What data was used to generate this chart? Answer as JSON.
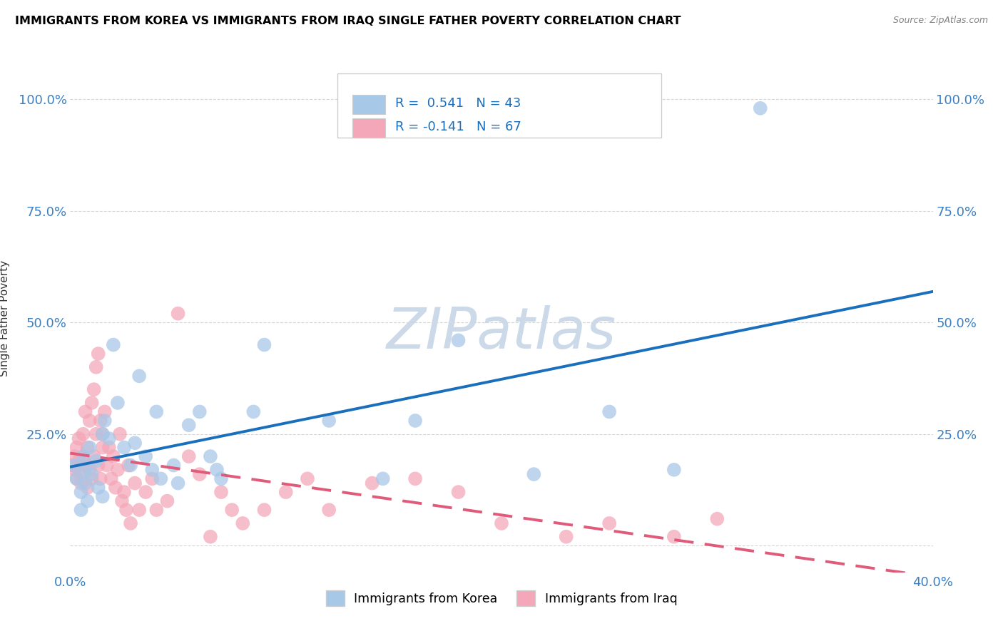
{
  "title": "IMMIGRANTS FROM KOREA VS IMMIGRANTS FROM IRAQ SINGLE FATHER POVERTY CORRELATION CHART",
  "source": "Source: ZipAtlas.com",
  "ylabel": "Single Father Poverty",
  "ytick_labels": [
    "",
    "25.0%",
    "50.0%",
    "75.0%",
    "100.0%"
  ],
  "ytick_values": [
    0.0,
    0.25,
    0.5,
    0.75,
    1.0
  ],
  "xtick_labels": [
    "0.0%",
    "",
    "",
    "",
    "40.0%"
  ],
  "xtick_values": [
    0.0,
    0.1,
    0.2,
    0.3,
    0.4
  ],
  "xlim": [
    0.0,
    0.4
  ],
  "ylim": [
    -0.06,
    1.08
  ],
  "korea_color": "#a8c8e8",
  "iraq_color": "#f4a7b9",
  "korea_line_color": "#1a6fbd",
  "iraq_line_color": "#e05a7a",
  "korea_R": "0.541",
  "korea_N": "43",
  "iraq_R": "-0.141",
  "iraq_N": "67",
  "watermark": "ZIPatlas",
  "watermark_color": "#ccd9e8",
  "background_color": "#ffffff",
  "grid_color": "#cccccc",
  "axis_label_color": "#3a7fc1",
  "legend_text_color": "#1a6fbd",
  "korea_x": [
    0.002,
    0.003,
    0.005,
    0.005,
    0.006,
    0.007,
    0.007,
    0.008,
    0.009,
    0.01,
    0.012,
    0.013,
    0.015,
    0.015,
    0.016,
    0.018,
    0.02,
    0.022,
    0.025,
    0.028,
    0.03,
    0.032,
    0.035,
    0.038,
    0.04,
    0.042,
    0.048,
    0.05,
    0.055,
    0.06,
    0.065,
    0.068,
    0.07,
    0.085,
    0.09,
    0.12,
    0.145,
    0.16,
    0.18,
    0.215,
    0.25,
    0.28,
    0.32
  ],
  "korea_y": [
    0.18,
    0.15,
    0.12,
    0.08,
    0.2,
    0.17,
    0.14,
    0.1,
    0.22,
    0.16,
    0.19,
    0.13,
    0.25,
    0.11,
    0.28,
    0.24,
    0.45,
    0.32,
    0.22,
    0.18,
    0.23,
    0.38,
    0.2,
    0.17,
    0.3,
    0.15,
    0.18,
    0.14,
    0.27,
    0.3,
    0.2,
    0.17,
    0.15,
    0.3,
    0.45,
    0.28,
    0.15,
    0.28,
    0.46,
    0.16,
    0.3,
    0.17,
    0.98
  ],
  "iraq_x": [
    0.001,
    0.002,
    0.002,
    0.003,
    0.003,
    0.004,
    0.004,
    0.005,
    0.005,
    0.006,
    0.006,
    0.007,
    0.007,
    0.008,
    0.008,
    0.009,
    0.009,
    0.01,
    0.01,
    0.011,
    0.011,
    0.012,
    0.012,
    0.013,
    0.013,
    0.014,
    0.014,
    0.015,
    0.015,
    0.016,
    0.017,
    0.018,
    0.019,
    0.02,
    0.021,
    0.022,
    0.023,
    0.024,
    0.025,
    0.026,
    0.027,
    0.028,
    0.03,
    0.032,
    0.035,
    0.038,
    0.04,
    0.045,
    0.05,
    0.055,
    0.06,
    0.065,
    0.07,
    0.075,
    0.08,
    0.09,
    0.1,
    0.11,
    0.12,
    0.14,
    0.16,
    0.18,
    0.2,
    0.23,
    0.25,
    0.28,
    0.3
  ],
  "iraq_y": [
    0.18,
    0.2,
    0.17,
    0.22,
    0.15,
    0.19,
    0.24,
    0.16,
    0.14,
    0.2,
    0.25,
    0.18,
    0.3,
    0.13,
    0.22,
    0.28,
    0.17,
    0.32,
    0.15,
    0.35,
    0.2,
    0.4,
    0.25,
    0.43,
    0.18,
    0.28,
    0.15,
    0.25,
    0.22,
    0.3,
    0.18,
    0.22,
    0.15,
    0.2,
    0.13,
    0.17,
    0.25,
    0.1,
    0.12,
    0.08,
    0.18,
    0.05,
    0.14,
    0.08,
    0.12,
    0.15,
    0.08,
    0.1,
    0.52,
    0.2,
    0.16,
    0.02,
    0.12,
    0.08,
    0.05,
    0.08,
    0.12,
    0.15,
    0.08,
    0.14,
    0.15,
    0.12,
    0.05,
    0.02,
    0.05,
    0.02,
    0.06
  ]
}
